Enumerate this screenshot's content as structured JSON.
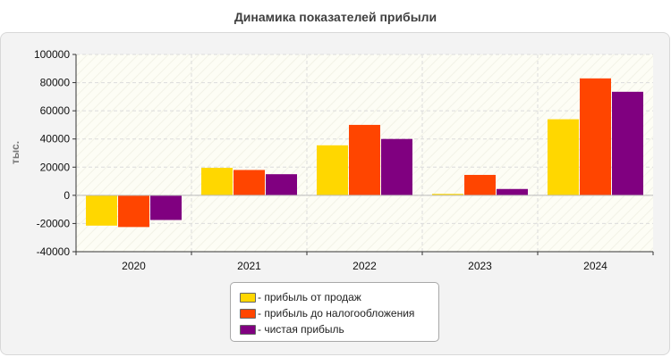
{
  "chart_data": {
    "type": "bar",
    "title": "Динамика показателей прибыли",
    "ylabel": "тыс.",
    "xlabel": "",
    "categories": [
      "2020",
      "2021",
      "2022",
      "2023",
      "2024"
    ],
    "ylim": [
      -40000,
      100000
    ],
    "yticks": [
      100000,
      80000,
      60000,
      40000,
      20000,
      0,
      -20000,
      -40000
    ],
    "grid": true,
    "legend_position": "bottom",
    "series": [
      {
        "name": "прибыль от продаж",
        "color": "#FFD700",
        "values": [
          -21500,
          19500,
          35500,
          1000,
          54000
        ]
      },
      {
        "name": "прибыль до налогообложения",
        "color": "#FF4500",
        "values": [
          -22500,
          18000,
          50000,
          14500,
          83000
        ]
      },
      {
        "name": "чистая прибыль",
        "color": "#800080",
        "values": [
          -17500,
          15000,
          40000,
          4500,
          73500
        ]
      }
    ]
  },
  "legend": {
    "items": [
      {
        "label": "- прибыль от продаж",
        "color": "#FFD700"
      },
      {
        "label": "- прибыль до налогообложения",
        "color": "#FF4500"
      },
      {
        "label": "- чистая прибыль",
        "color": "#800080"
      }
    ]
  }
}
